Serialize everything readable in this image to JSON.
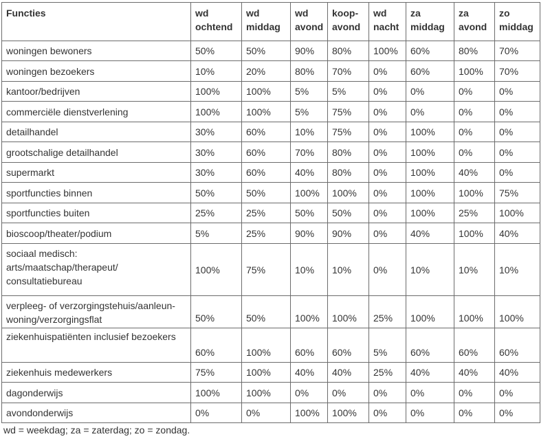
{
  "table": {
    "headers": [
      [
        "Functies"
      ],
      [
        "wd",
        "ochtend"
      ],
      [
        "wd",
        "middag"
      ],
      [
        "wd",
        "avond"
      ],
      [
        "koop-",
        "avond"
      ],
      [
        "wd",
        "nacht"
      ],
      [
        "za",
        "middag"
      ],
      [
        "za",
        "avond"
      ],
      [
        "zo",
        "middag"
      ]
    ],
    "rows": [
      {
        "name": [
          "woningen bewoners"
        ],
        "values": [
          "50%",
          "50%",
          "90%",
          "80%",
          "100%",
          "60%",
          "80%",
          "70%"
        ]
      },
      {
        "name": [
          "woningen bezoekers"
        ],
        "values": [
          "10%",
          "20%",
          "80%",
          "70%",
          "0%",
          "60%",
          "100%",
          "70%"
        ]
      },
      {
        "name": [
          "kantoor/bedrijven"
        ],
        "values": [
          "100%",
          "100%",
          "5%",
          "5%",
          "0%",
          "0%",
          "0%",
          "0%"
        ]
      },
      {
        "name": [
          "commerciële dienstverlening"
        ],
        "values": [
          "100%",
          "100%",
          "5%",
          "75%",
          "0%",
          "0%",
          "0%",
          "0%"
        ]
      },
      {
        "name": [
          "detailhandel"
        ],
        "values": [
          "30%",
          "60%",
          "10%",
          "75%",
          "0%",
          "100%",
          "0%",
          "0%"
        ]
      },
      {
        "name": [
          "grootschalige detailhandel"
        ],
        "values": [
          "30%",
          "60%",
          "70%",
          "80%",
          "0%",
          "100%",
          "0%",
          "0%"
        ]
      },
      {
        "name": [
          "supermarkt"
        ],
        "values": [
          "30%",
          "60%",
          "40%",
          "80%",
          "0%",
          "100%",
          "40%",
          "0%"
        ]
      },
      {
        "name": [
          "sportfuncties binnen"
        ],
        "values": [
          "50%",
          "50%",
          "100%",
          "100%",
          "0%",
          "100%",
          "100%",
          "75%"
        ]
      },
      {
        "name": [
          "sportfuncties buiten"
        ],
        "values": [
          "25%",
          "25%",
          "50%",
          "50%",
          "0%",
          "100%",
          "25%",
          "100%"
        ]
      },
      {
        "name": [
          "bioscoop/theater/podium"
        ],
        "values": [
          "5%",
          "25%",
          "90%",
          "90%",
          "0%",
          "40%",
          "100%",
          "40%"
        ]
      },
      {
        "name": [
          "sociaal medisch:",
          "arts/maatschap/therapeut/",
          "consultatiebureau"
        ],
        "values": [
          "100%",
          "75%",
          "10%",
          "10%",
          "0%",
          "10%",
          "10%",
          "10%"
        ]
      },
      {
        "name": [
          "verpleeg- of verzorgingstehuis/aanleun-",
          "woning/verzorgingsflat"
        ],
        "values": [
          "50%",
          "50%",
          "100%",
          "100%",
          "25%",
          "100%",
          "100%",
          "100%"
        ]
      },
      {
        "name": [
          "ziekenhuispatiënten inclusief bezoekers"
        ],
        "values": [
          "60%",
          "100%",
          "60%",
          "60%",
          "5%",
          "60%",
          "60%",
          "60%"
        ]
      },
      {
        "name": [
          "ziekenhuis medewerkers"
        ],
        "values": [
          "75%",
          "100%",
          "40%",
          "40%",
          "25%",
          "40%",
          "40%",
          "40%"
        ]
      },
      {
        "name": [
          "dagonderwijs"
        ],
        "values": [
          "100%",
          "100%",
          "0%",
          "0%",
          "0%",
          "0%",
          "0%",
          "0%"
        ]
      },
      {
        "name": [
          "avondonderwijs"
        ],
        "values": [
          "0%",
          "0%",
          "100%",
          "100%",
          "0%",
          "0%",
          "0%",
          "0%"
        ]
      }
    ]
  },
  "footnote": "wd = weekdag; za = zaterdag; zo = zondag."
}
